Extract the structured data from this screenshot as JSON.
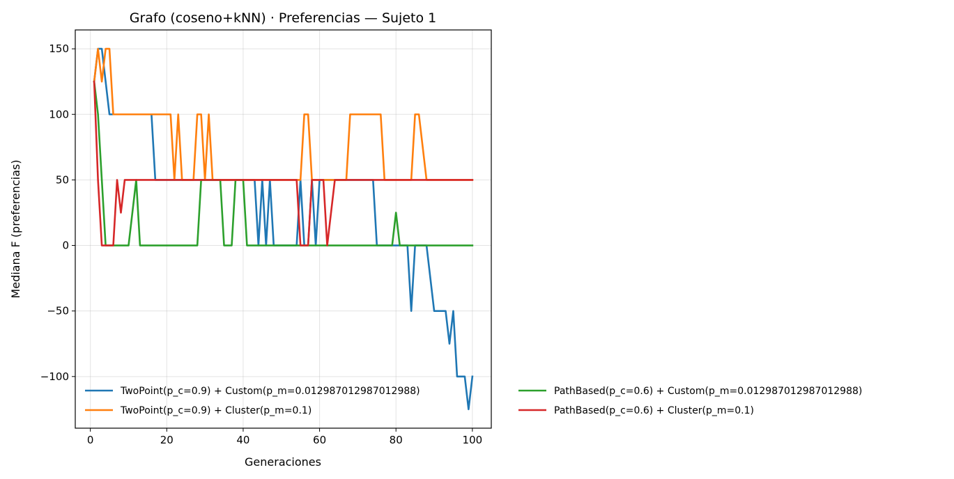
{
  "chart_data": {
    "type": "line",
    "title": "Grafo (coseno+kNN) · Preferencias — Sujeto 1",
    "xlabel": "Generaciones",
    "ylabel": "Mediana F (preferencias)",
    "xlim": [
      -3.95,
      104.95
    ],
    "ylim": [
      -139.4,
      164.4
    ],
    "xticks": [
      0,
      20,
      40,
      60,
      80,
      100
    ],
    "yticks": [
      -100,
      -50,
      0,
      50,
      100,
      150
    ],
    "ytick_labels": [
      "−100",
      "−50",
      "0",
      "50",
      "100",
      "150"
    ],
    "grid": true,
    "legend_placement": "bottom, two columns",
    "series": [
      {
        "name": "TwoPoint(p_c=0.9) + Custom(p_m=0.012987012987012988)",
        "color": "#1f77b4",
        "points": [
          [
            1,
            125
          ],
          [
            2,
            150
          ],
          [
            3,
            150
          ],
          [
            4,
            125
          ],
          [
            5,
            100
          ],
          [
            6,
            100
          ],
          [
            16,
            100
          ],
          [
            17,
            50
          ],
          [
            43,
            50
          ],
          [
            44,
            0
          ],
          [
            45,
            50
          ],
          [
            46,
            0
          ],
          [
            47,
            50
          ],
          [
            48,
            0
          ],
          [
            54,
            0
          ],
          [
            55,
            50
          ],
          [
            56,
            0
          ],
          [
            57,
            0
          ],
          [
            58,
            50
          ],
          [
            59,
            0
          ],
          [
            60,
            50
          ],
          [
            74,
            50
          ],
          [
            75,
            0
          ],
          [
            80,
            0
          ],
          [
            81,
            0
          ],
          [
            83,
            0
          ],
          [
            84,
            -50
          ],
          [
            85,
            0
          ],
          [
            88,
            0
          ],
          [
            90,
            -50
          ],
          [
            93,
            -50
          ],
          [
            94,
            -75
          ],
          [
            95,
            -50
          ],
          [
            96,
            -100
          ],
          [
            98,
            -100
          ],
          [
            99,
            -125
          ],
          [
            100,
            -100
          ]
        ]
      },
      {
        "name": "TwoPoint(p_c=0.9) + Cluster(p_m=0.1)",
        "color": "#ff7f0e",
        "points": [
          [
            1,
            125
          ],
          [
            2,
            150
          ],
          [
            3,
            125
          ],
          [
            4,
            150
          ],
          [
            5,
            150
          ],
          [
            6,
            100
          ],
          [
            21,
            100
          ],
          [
            22,
            50
          ],
          [
            23,
            100
          ],
          [
            24,
            50
          ],
          [
            27,
            50
          ],
          [
            28,
            100
          ],
          [
            29,
            100
          ],
          [
            30,
            50
          ],
          [
            31,
            100
          ],
          [
            32,
            50
          ],
          [
            55,
            50
          ],
          [
            56,
            100
          ],
          [
            57,
            100
          ],
          [
            58,
            50
          ],
          [
            67,
            50
          ],
          [
            68,
            100
          ],
          [
            76,
            100
          ],
          [
            77,
            50
          ],
          [
            84,
            50
          ],
          [
            85,
            100
          ],
          [
            86,
            100
          ],
          [
            88,
            50
          ],
          [
            100,
            50
          ]
        ]
      },
      {
        "name": "PathBased(p_c=0.6) + Custom(p_m=0.012987012987012988)",
        "color": "#2ca02c",
        "points": [
          [
            1,
            125
          ],
          [
            2,
            100
          ],
          [
            4,
            0
          ],
          [
            10,
            0
          ],
          [
            12,
            50
          ],
          [
            13,
            0
          ],
          [
            28,
            0
          ],
          [
            29,
            50
          ],
          [
            34,
            50
          ],
          [
            35,
            0
          ],
          [
            37,
            0
          ],
          [
            38,
            50
          ],
          [
            40,
            50
          ],
          [
            41,
            0
          ],
          [
            79,
            0
          ],
          [
            80,
            25
          ],
          [
            81,
            0
          ],
          [
            100,
            0
          ]
        ]
      },
      {
        "name": "PathBased(p_c=0.6) + Cluster(p_m=0.1)",
        "color": "#d62728",
        "points": [
          [
            1,
            125
          ],
          [
            2,
            50
          ],
          [
            3,
            0
          ],
          [
            6,
            0
          ],
          [
            7,
            50
          ],
          [
            8,
            25
          ],
          [
            9,
            50
          ],
          [
            54,
            50
          ],
          [
            55,
            0
          ],
          [
            57,
            0
          ],
          [
            58,
            50
          ],
          [
            61,
            50
          ],
          [
            62,
            0
          ],
          [
            64,
            50
          ],
          [
            100,
            50
          ]
        ]
      }
    ]
  }
}
